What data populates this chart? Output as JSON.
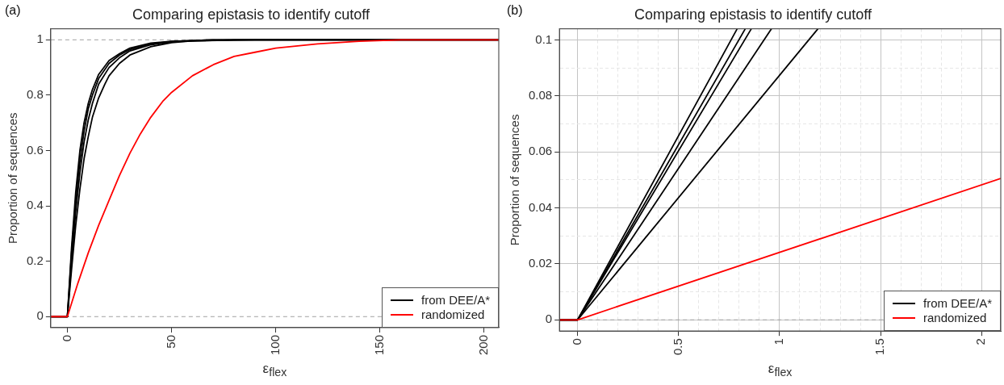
{
  "chart_data": [
    {
      "type": "line",
      "title": "Comparing epistasis to identify cutoff",
      "xlabel": "ε$_{flex}$",
      "ylabel": "Proportion of sequences",
      "annotations": [
        "(a)"
      ],
      "xlim": [
        -8,
        207
      ],
      "ylim": [
        -0.04,
        1.04
      ],
      "xticks": [
        0,
        50,
        100,
        150,
        200
      ],
      "yticks": [
        0,
        0.2,
        0.4,
        0.6,
        0.8,
        1
      ],
      "grid": false,
      "legend": "bottom right",
      "ref_lines": [
        {
          "axis": "y",
          "value": 0,
          "color": "#a0a0a0",
          "line_style": "dashed"
        },
        {
          "axis": "y",
          "value": 1,
          "color": "#a0a0a0",
          "line_style": "dashed"
        }
      ],
      "series": [
        {
          "name": "from DEE/A*",
          "color": "#000000",
          "x": [
            -8,
            0,
            2,
            4,
            6,
            8,
            10,
            12,
            15,
            20,
            25,
            30,
            40,
            50,
            70,
            207
          ],
          "values": [
            0,
            0,
            0.25,
            0.45,
            0.6,
            0.7,
            0.77,
            0.82,
            0.875,
            0.925,
            0.95,
            0.97,
            0.988,
            0.995,
            1,
            1
          ]
        },
        {
          "color": "#000000",
          "x": [
            -8,
            0,
            2,
            4,
            6,
            8,
            10,
            12,
            15,
            20,
            25,
            30,
            40,
            50,
            70,
            207
          ],
          "values": [
            0,
            0,
            0.23,
            0.42,
            0.56,
            0.67,
            0.75,
            0.8,
            0.86,
            0.915,
            0.945,
            0.965,
            0.985,
            0.994,
            1,
            1
          ]
        },
        {
          "color": "#000000",
          "x": [
            -8,
            0,
            2,
            4,
            6,
            8,
            10,
            12,
            15,
            20,
            25,
            30,
            40,
            50,
            80,
            207
          ],
          "values": [
            0,
            0,
            0.2,
            0.38,
            0.52,
            0.63,
            0.71,
            0.77,
            0.84,
            0.9,
            0.935,
            0.96,
            0.982,
            0.993,
            1,
            1
          ]
        },
        {
          "color": "#000000",
          "x": [
            -8,
            0,
            2,
            4,
            6,
            8,
            10,
            12,
            15,
            18,
            20,
            25,
            30,
            40,
            50,
            60,
            90,
            207
          ],
          "values": [
            0,
            0,
            0.17,
            0.33,
            0.46,
            0.57,
            0.65,
            0.72,
            0.79,
            0.84,
            0.87,
            0.915,
            0.945,
            0.975,
            0.99,
            0.996,
            1,
            1
          ]
        },
        {
          "name": "randomized",
          "color": "#ff0000",
          "x": [
            -8,
            0,
            5,
            10,
            15,
            20,
            25,
            30,
            35,
            40,
            46,
            50,
            60,
            70,
            80,
            90,
            100,
            120,
            140,
            160,
            207
          ],
          "values": [
            0,
            0,
            0.12,
            0.23,
            0.33,
            0.42,
            0.51,
            0.59,
            0.66,
            0.72,
            0.78,
            0.81,
            0.87,
            0.91,
            0.94,
            0.955,
            0.97,
            0.985,
            0.995,
            1,
            1
          ]
        }
      ]
    },
    {
      "type": "line",
      "title": "Comparing epistasis to identify cutoff",
      "xlabel": "ε$_{flex}$",
      "ylabel": "Proportion of sequences",
      "annotations": [
        "(b)"
      ],
      "xlim": [
        -0.09,
        2.095
      ],
      "ylim": [
        -0.004,
        0.104
      ],
      "xticks": [
        0,
        {
          "value": 0.1,
          "label": null
        },
        {
          "value": 0.2,
          "label": null
        },
        {
          "value": 0.3,
          "label": null
        },
        {
          "value": 0.4,
          "label": null
        },
        0.5,
        {
          "value": 0.6,
          "label": null
        },
        {
          "value": 0.7,
          "label": null
        },
        {
          "value": 0.8,
          "label": null
        },
        {
          "value": 0.9,
          "label": null
        },
        1,
        {
          "value": 1.1,
          "label": null
        },
        {
          "value": 1.2,
          "label": null
        },
        {
          "value": 1.3,
          "label": null
        },
        {
          "value": 1.4,
          "label": null
        },
        1.5,
        {
          "value": 1.6,
          "label": null
        },
        {
          "value": 1.7,
          "label": null
        },
        {
          "value": 1.8,
          "label": null
        },
        {
          "value": 1.9,
          "label": null
        },
        2
      ],
      "yticks": [
        0,
        {
          "value": 0.01,
          "label": null
        },
        0.02,
        {
          "value": 0.03,
          "label": null
        },
        0.04,
        {
          "value": 0.05,
          "label": null
        },
        0.06,
        {
          "value": 0.07,
          "label": null
        },
        0.08,
        {
          "value": 0.09,
          "label": null
        },
        0.1
      ],
      "grid": true,
      "legend": "bottom right",
      "ref_lines": [
        {
          "axis": "y",
          "value": 0,
          "color": "#a0a0a0",
          "line_style": "dashed"
        }
      ],
      "series": [
        {
          "name": "from DEE/A*",
          "color": "#000000",
          "x": [
            -0.09,
            0,
            0.79
          ],
          "values": [
            0,
            0,
            0.104
          ]
        },
        {
          "color": "#000000",
          "x": [
            -0.09,
            0,
            0.83
          ],
          "values": [
            0,
            0,
            0.104
          ]
        },
        {
          "color": "#000000",
          "x": [
            -0.09,
            0,
            0.86
          ],
          "values": [
            0,
            0,
            0.104
          ]
        },
        {
          "color": "#000000",
          "x": [
            -0.09,
            0,
            0.96
          ],
          "values": [
            0,
            0,
            0.104
          ]
        },
        {
          "color": "#000000",
          "x": [
            -0.09,
            0,
            1.19
          ],
          "values": [
            0,
            0,
            0.104
          ]
        },
        {
          "name": "randomized",
          "color": "#ff0000",
          "x": [
            -0.09,
            0,
            2.095
          ],
          "values": [
            0,
            0,
            0.0505
          ]
        }
      ]
    }
  ]
}
